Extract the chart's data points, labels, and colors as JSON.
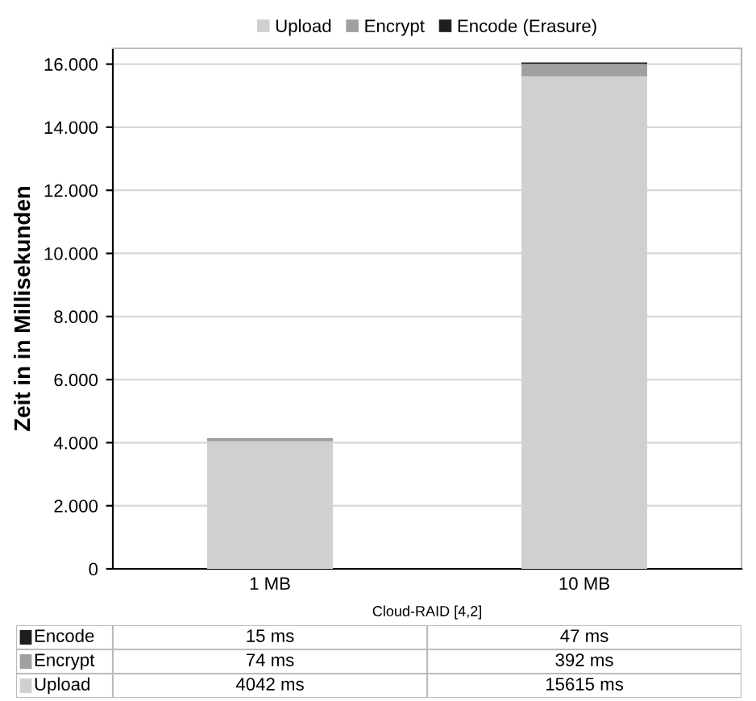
{
  "chart_data": {
    "type": "bar",
    "stacked": true,
    "ylabel": "Zeit in in Millisekunden",
    "xlabel": "Cloud-RAID [4,2]",
    "categories": [
      "1 MB",
      "10 MB"
    ],
    "series": [
      {
        "name": "Upload",
        "color": "#d0d0d0",
        "values": [
          4042,
          15615
        ],
        "value_labels": [
          "4042 ms",
          "15615 ms"
        ]
      },
      {
        "name": "Encrypt",
        "color": "#a0a0a0",
        "values": [
          74,
          392
        ],
        "value_labels": [
          "74 ms",
          "392 ms"
        ]
      },
      {
        "name": "Encode (Erasure)",
        "color": "#1e1e1e",
        "values": [
          15,
          47
        ],
        "value_labels": [
          "15 ms",
          "47 ms"
        ]
      }
    ],
    "annotations": [
      "Encode",
      "Encrypt",
      "Upload"
    ],
    "ylim": [
      0,
      16500
    ],
    "yticks": [
      {
        "value": 0,
        "label": "0"
      },
      {
        "value": 2000,
        "label": "2.000"
      },
      {
        "value": 4000,
        "label": "4.000"
      },
      {
        "value": 6000,
        "label": "6.000"
      },
      {
        "value": 8000,
        "label": "8.000"
      },
      {
        "value": 10000,
        "label": "10.000"
      },
      {
        "value": 12000,
        "label": "12.000"
      },
      {
        "value": 14000,
        "label": "14.000"
      },
      {
        "value": 16000,
        "label": "16.000"
      }
    ],
    "grid": "y",
    "legend": "top"
  }
}
